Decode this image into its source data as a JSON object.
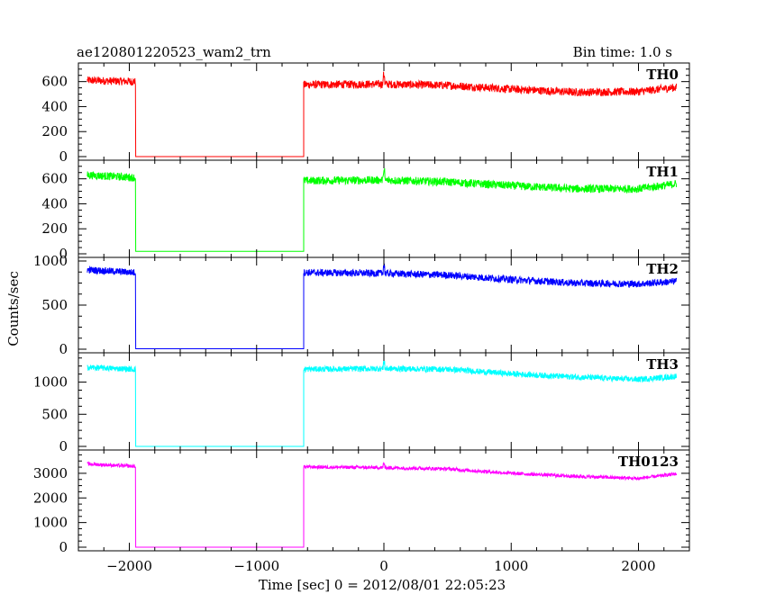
{
  "header": {
    "title": "ae120801220523_wam2_trn",
    "bin_time": "Bin time: 1.0 s"
  },
  "chart_data": {
    "type": "line",
    "title": "ae120801220523_wam2_trn",
    "xlabel": "Time [sec] 0 = 2012/08/01 22:05:23",
    "ylabel": "Counts/sec",
    "xlim": [
      -2400,
      2400
    ],
    "x_ticks": [
      -2000,
      -1000,
      0,
      1000,
      2000
    ],
    "x_tick_labels": [
      "−2000",
      "−1000",
      "0",
      "1000",
      "2000"
    ],
    "gap": {
      "start": -1950,
      "end": -630
    },
    "data_range": [
      -2330,
      2300
    ],
    "series": [
      {
        "name": "TH0",
        "color": "#ff0000",
        "ylim": [
          0,
          720
        ],
        "yticks": [
          0,
          200,
          400,
          600
        ],
        "level_points": [
          [
            -2330,
            610
          ],
          [
            -1960,
            600
          ],
          [
            -630,
            575
          ],
          [
            0,
            580
          ],
          [
            500,
            570
          ],
          [
            1000,
            540
          ],
          [
            1500,
            515
          ],
          [
            2000,
            520
          ],
          [
            2300,
            555
          ]
        ],
        "noise": 32,
        "gap_level": 0
      },
      {
        "name": "TH1",
        "color": "#00ff00",
        "ylim": [
          0,
          720
        ],
        "yticks": [
          0,
          200,
          400,
          600
        ],
        "level_points": [
          [
            -2330,
            630
          ],
          [
            -1960,
            610
          ],
          [
            -630,
            585
          ],
          [
            0,
            590
          ],
          [
            500,
            575
          ],
          [
            1000,
            545
          ],
          [
            1500,
            520
          ],
          [
            2000,
            520
          ],
          [
            2300,
            560
          ]
        ],
        "noise": 32,
        "gap_level": 20
      },
      {
        "name": "TH2",
        "color": "#0000ff",
        "ylim": [
          0,
          1000
        ],
        "yticks": [
          0,
          500,
          1000
        ],
        "level_points": [
          [
            -2330,
            900
          ],
          [
            -1960,
            870
          ],
          [
            -630,
            870
          ],
          [
            0,
            860
          ],
          [
            500,
            840
          ],
          [
            1000,
            790
          ],
          [
            1500,
            750
          ],
          [
            2000,
            740
          ],
          [
            2300,
            770
          ]
        ],
        "noise": 40,
        "gap_level": 5
      },
      {
        "name": "TH3",
        "color": "#00ffff",
        "ylim": [
          0,
          1400
        ],
        "yticks": [
          0,
          500,
          1000
        ],
        "level_points": [
          [
            -2330,
            1230
          ],
          [
            -1960,
            1200
          ],
          [
            -630,
            1200
          ],
          [
            0,
            1210
          ],
          [
            500,
            1200
          ],
          [
            1000,
            1130
          ],
          [
            1500,
            1080
          ],
          [
            2000,
            1040
          ],
          [
            2300,
            1090
          ]
        ],
        "noise": 45,
        "gap_level": 0
      },
      {
        "name": "TH0123",
        "color": "#ff00ff",
        "ylim": [
          0,
          3800
        ],
        "yticks": [
          0,
          1000,
          2000,
          3000
        ],
        "level_points": [
          [
            -2330,
            3380
          ],
          [
            -1960,
            3280
          ],
          [
            -630,
            3260
          ],
          [
            0,
            3230
          ],
          [
            500,
            3180
          ],
          [
            1000,
            3000
          ],
          [
            1500,
            2880
          ],
          [
            2000,
            2790
          ],
          [
            2300,
            2980
          ]
        ],
        "noise": 70,
        "gap_level": 0
      }
    ]
  }
}
